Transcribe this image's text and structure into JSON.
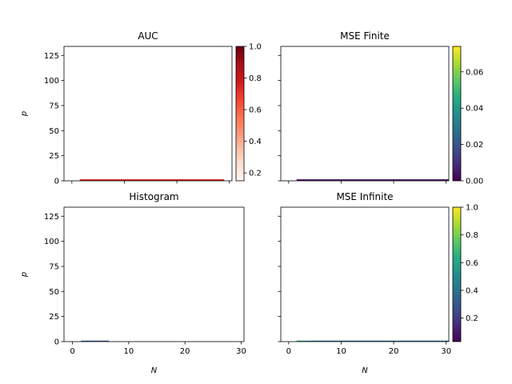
{
  "chart_data": [
    {
      "type": "heatmap",
      "title": "AUC",
      "xlabel": "",
      "ylabel": "p",
      "xlim": [
        -1.5,
        30.5
      ],
      "ylim": [
        0,
        134
      ],
      "xticks": [
        0,
        10,
        20,
        30
      ],
      "yticks": [
        0,
        25,
        50,
        75,
        100,
        125
      ],
      "show_x_tick_labels": false,
      "show_y_tick_labels": true,
      "colormap": "Reds",
      "color_range": [
        0.15,
        1.0
      ],
      "colorbar_ticks": [
        "0.2",
        "0.4",
        "0.6",
        "0.8",
        "1.0"
      ],
      "colorbar_tick_values": [
        0.2,
        0.4,
        0.6,
        0.8,
        1.0
      ],
      "cells": [
        {
          "x0": 1.5,
          "x1": 29,
          "y0": 0,
          "y1": 1.5,
          "value": 0.78
        }
      ]
    },
    {
      "type": "heatmap",
      "title": "MSE Finite",
      "xlabel": "",
      "ylabel": "",
      "xlim": [
        -1.5,
        30.5
      ],
      "ylim": [
        0,
        134
      ],
      "xticks": [
        0,
        10,
        20,
        30
      ],
      "yticks": [
        0,
        25,
        50,
        75,
        100,
        125
      ],
      "show_x_tick_labels": false,
      "show_y_tick_labels": false,
      "colormap": "viridis",
      "color_range": [
        0.0,
        0.074
      ],
      "colorbar_ticks": [
        "0.00",
        "0.02",
        "0.04",
        "0.06"
      ],
      "colorbar_tick_values": [
        0.0,
        0.02,
        0.04,
        0.06
      ],
      "cells": [
        {
          "x0": 1.5,
          "x1": 30.5,
          "y0": 0,
          "y1": 1.5,
          "value": 0.003
        }
      ]
    },
    {
      "type": "heatmap",
      "title": "Histogram",
      "xlabel": "N",
      "ylabel": "p",
      "xlim": [
        -1.5,
        30.5
      ],
      "ylim": [
        0,
        134
      ],
      "xticks": [
        0,
        10,
        20,
        30
      ],
      "yticks": [
        0,
        25,
        50,
        75,
        100,
        125
      ],
      "show_x_tick_labels": true,
      "show_y_tick_labels": true,
      "colormap": "viridis",
      "color_range": [
        0,
        1
      ],
      "colorbar_ticks": [],
      "colorbar_tick_values": [],
      "cells": [
        {
          "x0": 1.5,
          "x1": 6.5,
          "y0": 0,
          "y1": 1.0,
          "value": 0.3
        }
      ]
    },
    {
      "type": "heatmap",
      "title": "MSE Infinite",
      "xlabel": "N",
      "ylabel": "",
      "xlim": [
        -1.5,
        30.5
      ],
      "ylim": [
        0,
        134
      ],
      "xticks": [
        0,
        10,
        20,
        30
      ],
      "yticks": [
        0,
        25,
        50,
        75,
        100,
        125
      ],
      "show_x_tick_labels": true,
      "show_y_tick_labels": false,
      "colormap": "viridis",
      "color_range": [
        0.03,
        1.0
      ],
      "colorbar_ticks": [
        "0.2",
        "0.4",
        "0.6",
        "0.8",
        "1.0"
      ],
      "colorbar_tick_values": [
        0.2,
        0.4,
        0.6,
        0.8,
        1.0
      ],
      "cells": [
        {
          "x0": 1.5,
          "x1": 4,
          "y0": 0,
          "y1": 1.0,
          "value": 0.55
        },
        {
          "x0": 4,
          "x1": 30.5,
          "y0": 0,
          "y1": 1.0,
          "value": 0.4
        }
      ]
    }
  ]
}
